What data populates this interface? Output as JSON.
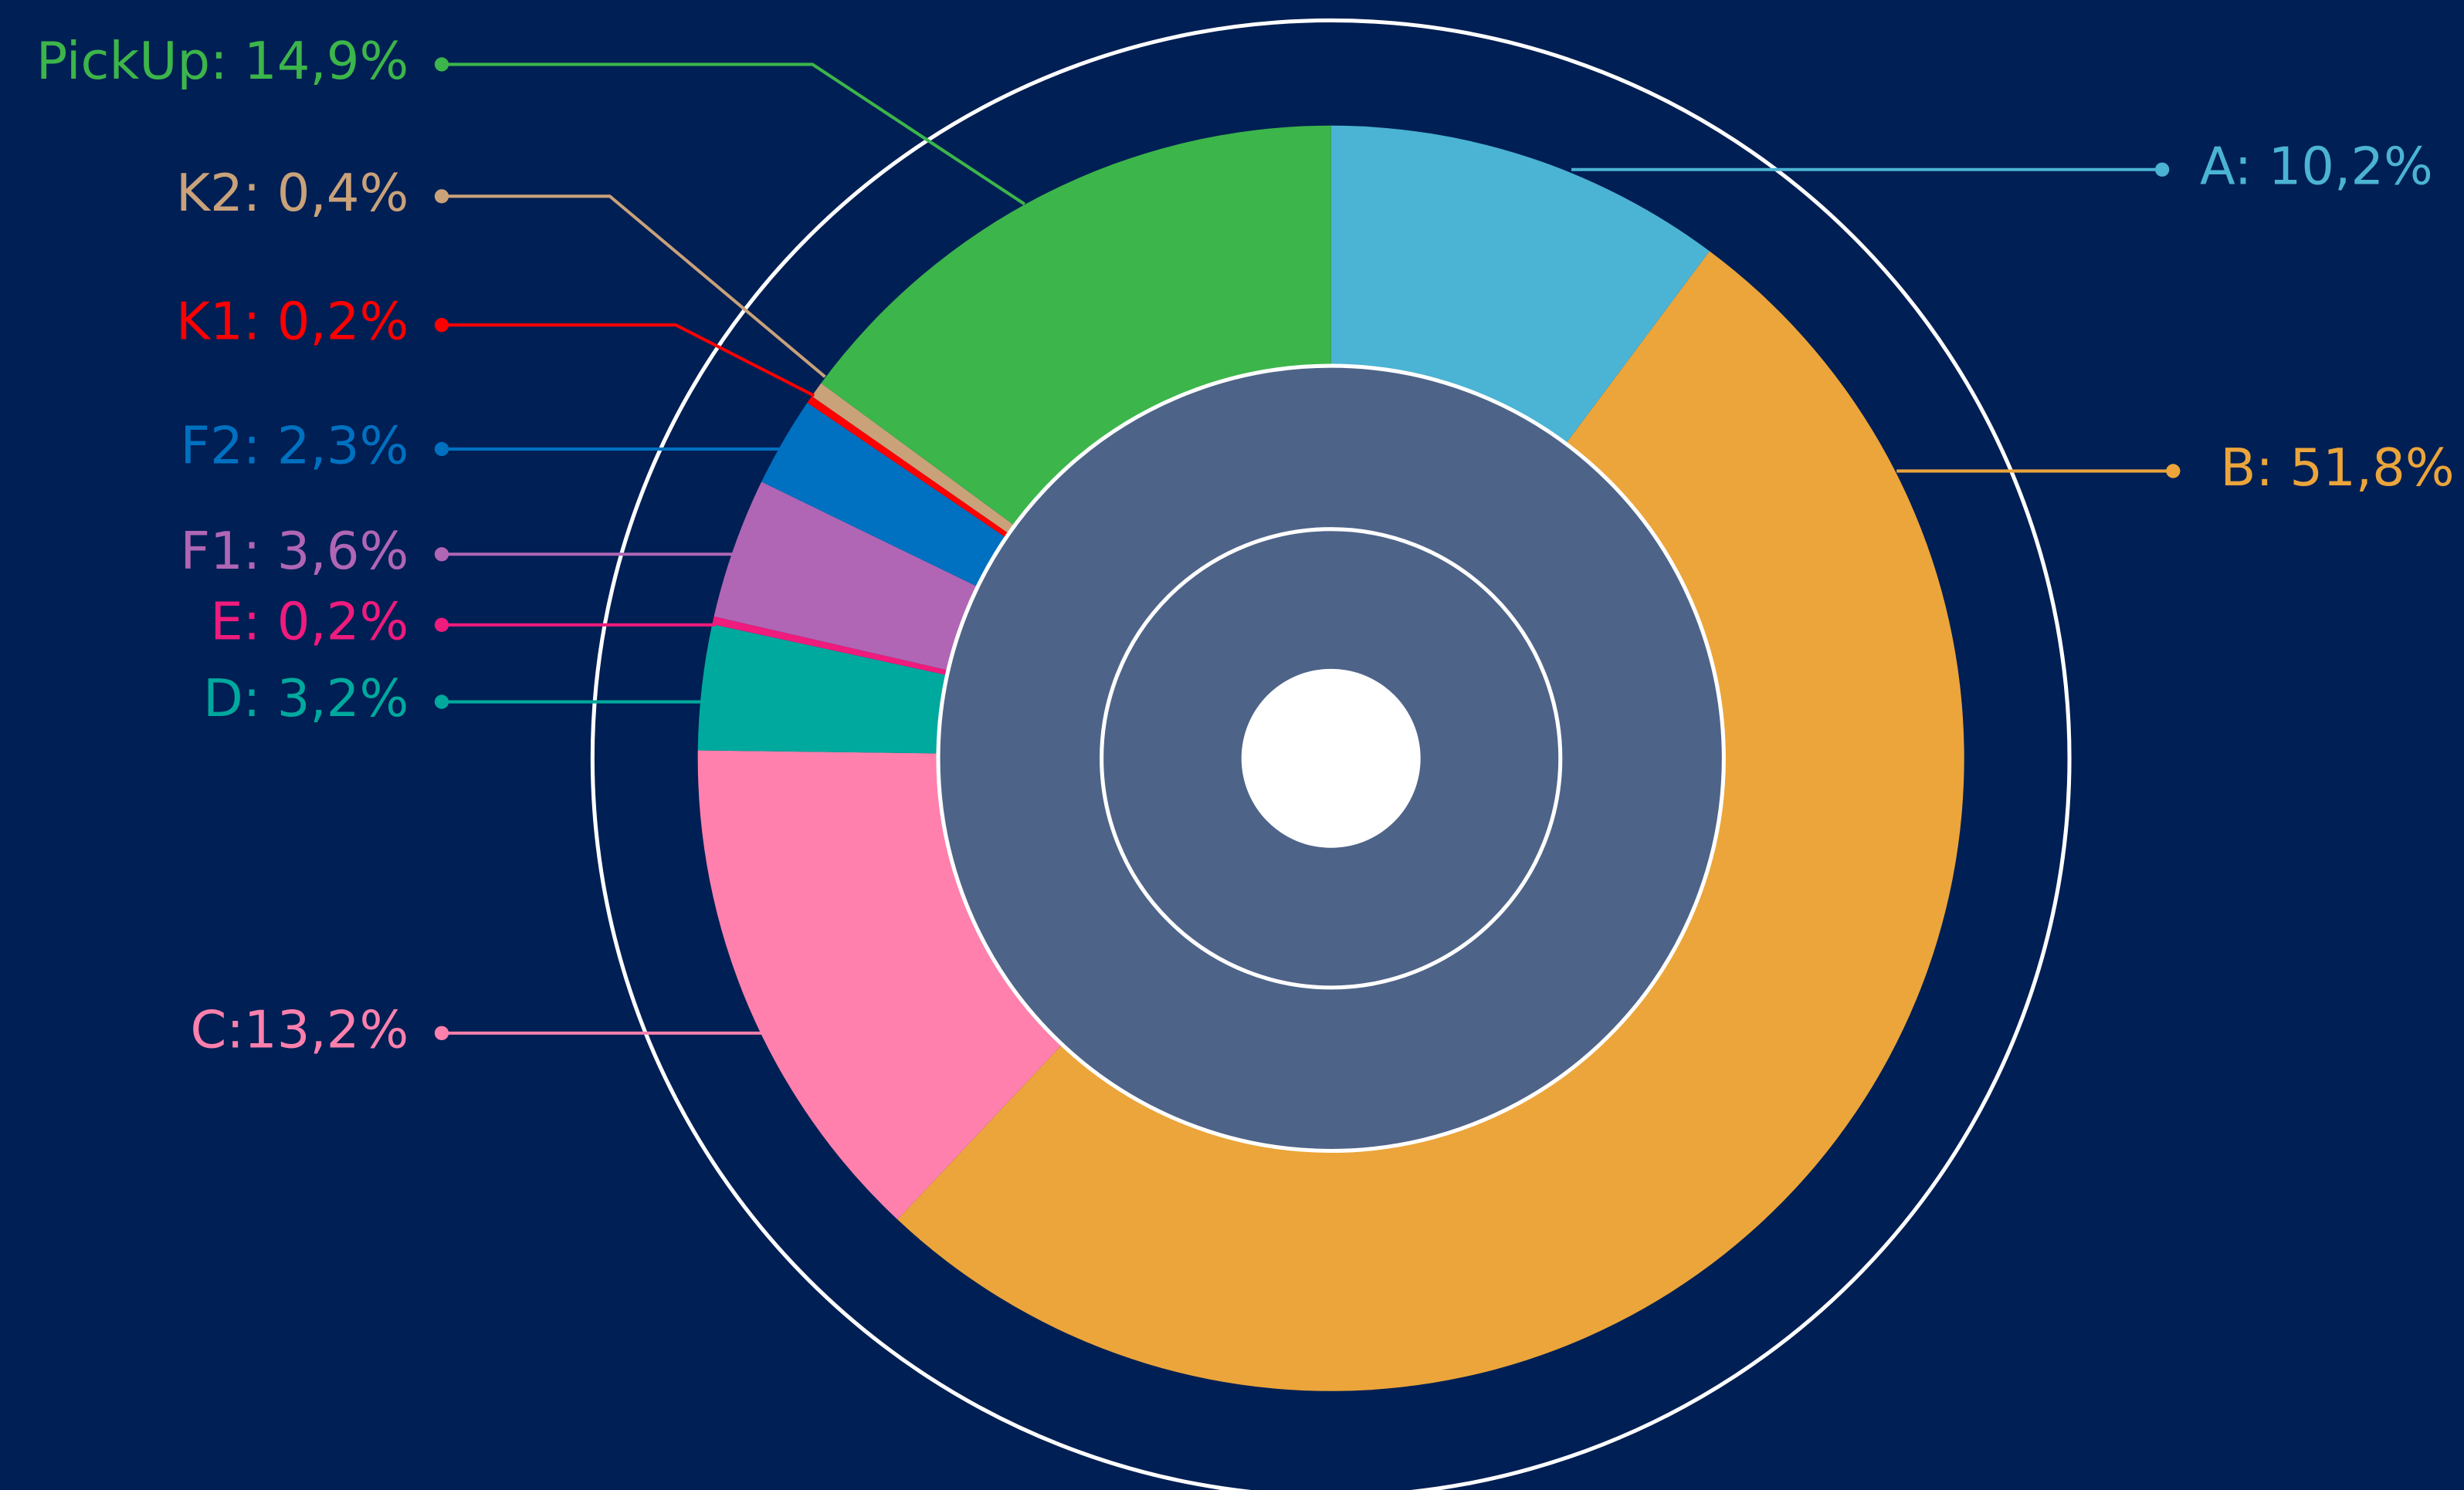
{
  "chart_data": {
    "type": "pie",
    "value_labels": [
      "A: 10,2%",
      "B: 51,8%",
      "C:13,2%",
      "D: 3,2%",
      "E: 0,2%",
      "F1: 3,6%",
      "F2: 2,3%",
      "K1: 0,2%",
      "K2: 0,4%",
      "PickUp: 14,9%"
    ],
    "values": [
      10.2,
      51.8,
      13.2,
      3.2,
      0.2,
      3.6,
      2.3,
      0.2,
      0.4,
      14.9
    ],
    "colors": [
      "#4bb3d3",
      "#eba53b",
      "#ff80ad",
      "#00a99d",
      "#ef1b7d",
      "#b066b5",
      "#0070c0",
      "#ff0000",
      "#c9a27a",
      "#3cb54a"
    ]
  }
}
